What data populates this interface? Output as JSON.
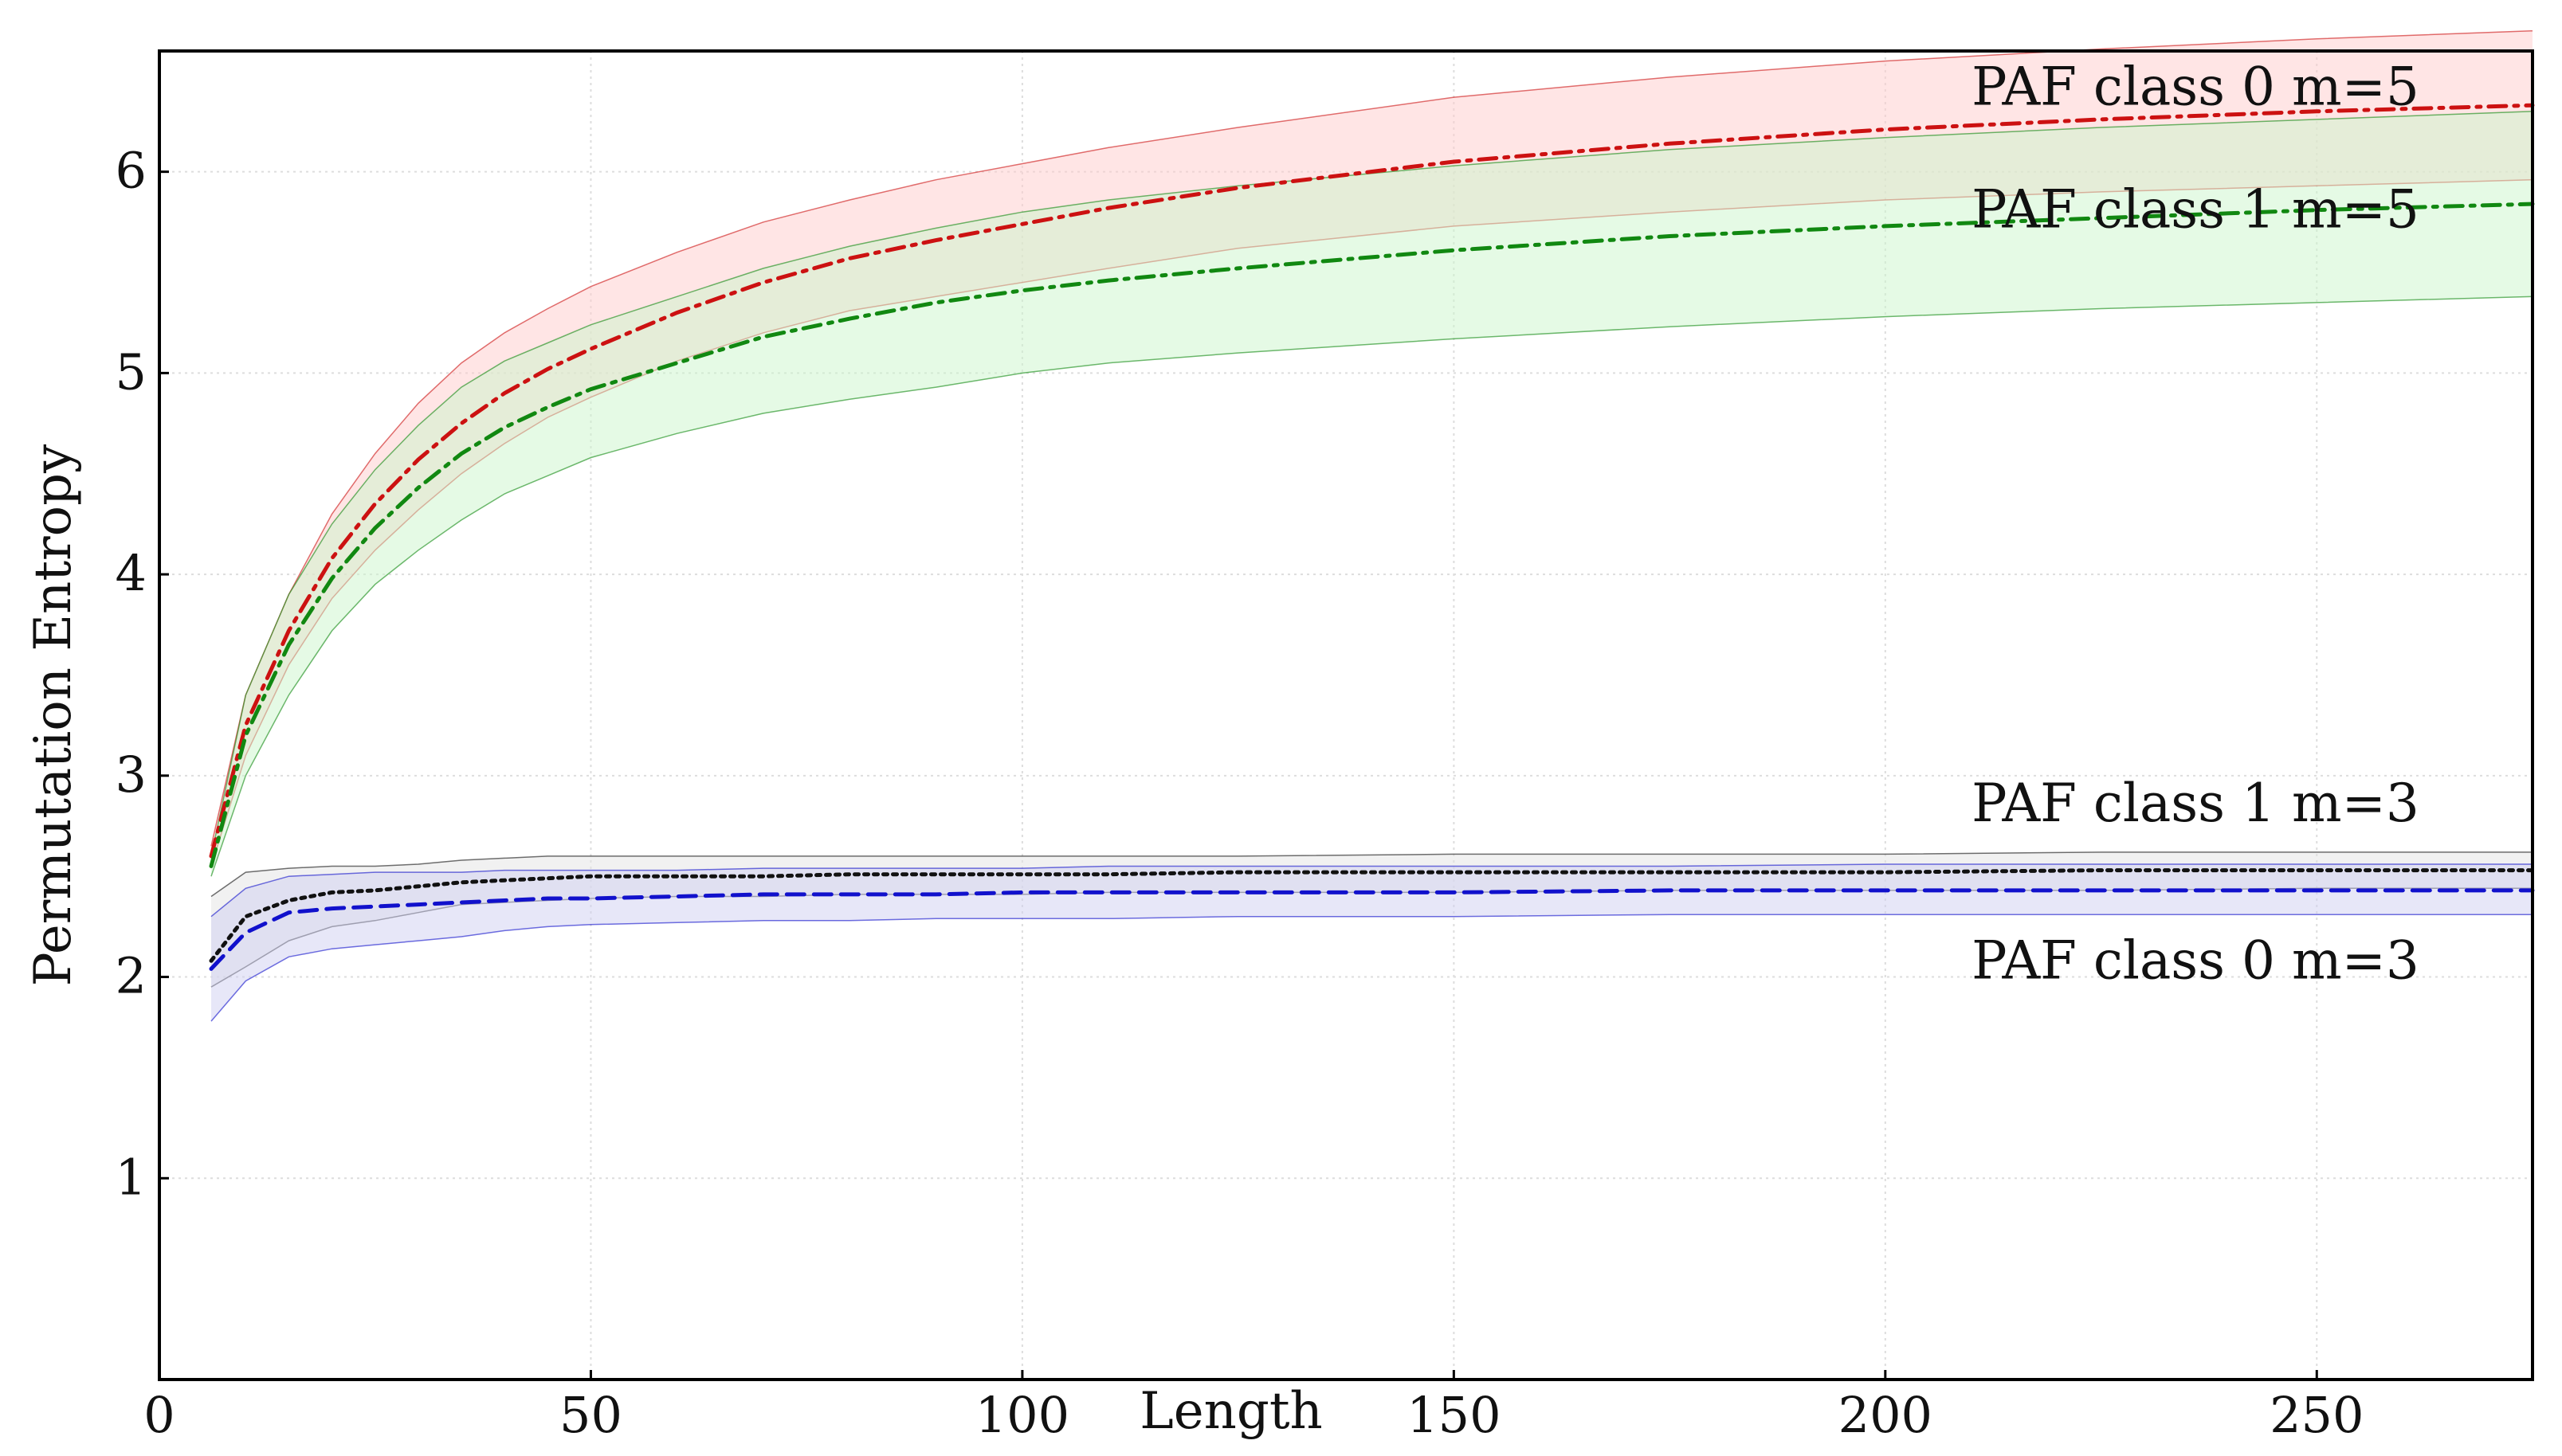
{
  "chart_data": {
    "type": "line",
    "title": "",
    "xlabel": "Length",
    "ylabel": "Permutation Entropy",
    "xlim": [
      0,
      275
    ],
    "ylim": [
      0,
      6.6
    ],
    "x_ticks": [
      0,
      50,
      100,
      150,
      200,
      250
    ],
    "y_ticks": [
      1,
      2,
      3,
      4,
      5,
      6
    ],
    "grid": true,
    "legend": "none",
    "x": [
      6,
      10,
      15,
      20,
      25,
      30,
      35,
      40,
      45,
      50,
      60,
      70,
      80,
      90,
      100,
      110,
      125,
      150,
      175,
      200,
      225,
      250,
      275
    ],
    "series": [
      {
        "name": "PAF class 0 m=5",
        "color": "#cc1111",
        "band_color": "#ffcccc",
        "line_style": "dashdot",
        "values": [
          2.6,
          3.25,
          3.72,
          4.08,
          4.35,
          4.57,
          4.75,
          4.9,
          5.02,
          5.12,
          5.3,
          5.45,
          5.57,
          5.66,
          5.74,
          5.82,
          5.92,
          6.05,
          6.14,
          6.21,
          6.26,
          6.3,
          6.33
        ],
        "lower": [
          2.55,
          3.1,
          3.55,
          3.88,
          4.12,
          4.32,
          4.5,
          4.65,
          4.78,
          4.88,
          5.06,
          5.2,
          5.31,
          5.38,
          5.45,
          5.52,
          5.62,
          5.73,
          5.8,
          5.86,
          5.9,
          5.93,
          5.96
        ],
        "upper": [
          2.65,
          3.4,
          3.9,
          4.3,
          4.6,
          4.85,
          5.05,
          5.2,
          5.32,
          5.43,
          5.6,
          5.75,
          5.86,
          5.96,
          6.04,
          6.12,
          6.22,
          6.37,
          6.47,
          6.55,
          6.61,
          6.66,
          6.7
        ]
      },
      {
        "name": "PAF class 1 m=5",
        "color": "#118811",
        "band_color": "#ccf5cc",
        "line_style": "dashdot",
        "values": [
          2.55,
          3.2,
          3.65,
          3.98,
          4.23,
          4.43,
          4.6,
          4.73,
          4.83,
          4.92,
          5.05,
          5.18,
          5.27,
          5.35,
          5.41,
          5.46,
          5.52,
          5.61,
          5.68,
          5.73,
          5.77,
          5.81,
          5.84
        ],
        "lower": [
          2.5,
          3.0,
          3.4,
          3.72,
          3.95,
          4.12,
          4.27,
          4.4,
          4.49,
          4.58,
          4.7,
          4.8,
          4.87,
          4.93,
          5.0,
          5.05,
          5.1,
          5.17,
          5.23,
          5.28,
          5.32,
          5.35,
          5.38
        ],
        "upper": [
          2.6,
          3.4,
          3.9,
          4.25,
          4.52,
          4.74,
          4.93,
          5.06,
          5.15,
          5.24,
          5.38,
          5.52,
          5.63,
          5.72,
          5.8,
          5.86,
          5.93,
          6.03,
          6.11,
          6.17,
          6.22,
          6.26,
          6.3
        ]
      },
      {
        "name": "PAF class 1 m=3",
        "color": "#111111",
        "band_color": "#e4e4e4",
        "line_style": "dotted",
        "values": [
          2.08,
          2.3,
          2.38,
          2.42,
          2.43,
          2.45,
          2.47,
          2.48,
          2.49,
          2.5,
          2.5,
          2.5,
          2.51,
          2.51,
          2.51,
          2.51,
          2.52,
          2.52,
          2.52,
          2.52,
          2.53,
          2.53,
          2.53
        ],
        "lower": [
          1.95,
          2.05,
          2.18,
          2.25,
          2.28,
          2.32,
          2.36,
          2.37,
          2.38,
          2.39,
          2.4,
          2.4,
          2.41,
          2.41,
          2.41,
          2.42,
          2.42,
          2.42,
          2.43,
          2.43,
          2.43,
          2.44,
          2.44
        ],
        "upper": [
          2.4,
          2.52,
          2.54,
          2.55,
          2.55,
          2.56,
          2.58,
          2.59,
          2.6,
          2.6,
          2.6,
          2.6,
          2.6,
          2.6,
          2.6,
          2.6,
          2.6,
          2.61,
          2.61,
          2.61,
          2.62,
          2.62,
          2.62
        ]
      },
      {
        "name": "PAF class 0 m=3",
        "color": "#1111cc",
        "band_color": "#cfcff2",
        "line_style": "dashed",
        "values": [
          2.04,
          2.22,
          2.32,
          2.34,
          2.35,
          2.36,
          2.37,
          2.38,
          2.39,
          2.39,
          2.4,
          2.41,
          2.41,
          2.41,
          2.42,
          2.42,
          2.42,
          2.42,
          2.43,
          2.43,
          2.43,
          2.43,
          2.43
        ],
        "lower": [
          1.78,
          1.98,
          2.1,
          2.14,
          2.16,
          2.18,
          2.2,
          2.23,
          2.25,
          2.26,
          2.27,
          2.28,
          2.28,
          2.29,
          2.29,
          2.29,
          2.3,
          2.3,
          2.31,
          2.31,
          2.31,
          2.31,
          2.31
        ],
        "upper": [
          2.3,
          2.44,
          2.5,
          2.51,
          2.52,
          2.52,
          2.52,
          2.53,
          2.53,
          2.53,
          2.53,
          2.54,
          2.54,
          2.54,
          2.54,
          2.55,
          2.55,
          2.55,
          2.55,
          2.56,
          2.56,
          2.56,
          2.56
        ]
      }
    ],
    "annotations": [
      {
        "text": "PAF class 0 m=5",
        "x": 210,
        "y": 6.42
      },
      {
        "text": "PAF class 1 m=5",
        "x": 210,
        "y": 5.81
      },
      {
        "text": "PAF class 1 m=3",
        "x": 210,
        "y": 2.86
      },
      {
        "text": "PAF class 0 m=3",
        "x": 210,
        "y": 2.08
      }
    ]
  }
}
